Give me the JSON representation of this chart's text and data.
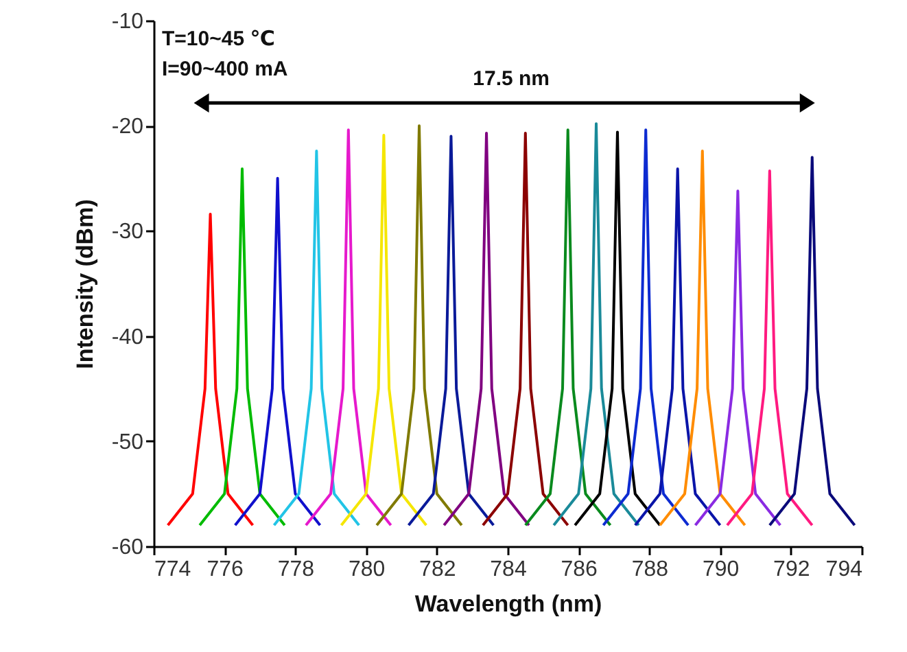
{
  "chart_data": {
    "type": "line",
    "xlabel": "Wavelength (nm)",
    "ylabel": "Intensity (dBm)",
    "xlim": [
      774,
      794
    ],
    "ylim": [
      -60,
      -10
    ],
    "xticks": [
      774,
      776,
      778,
      780,
      782,
      784,
      786,
      788,
      790,
      792,
      794
    ],
    "yticks": [
      -60,
      -50,
      -40,
      -30,
      -20,
      -10
    ],
    "grid": false,
    "marker": "none",
    "line_style": "solid",
    "annotations": [
      "T=10~45 ℃",
      "I=90~400 mA",
      "17.5 nm"
    ],
    "series": [
      {
        "color": "#ff0000",
        "x": [
          774.4,
          775.1,
          775.45,
          775.6,
          775.75,
          776.1,
          776.8
        ],
        "values": [
          -58,
          -55,
          -45,
          -28.4,
          -45,
          -55,
          -58
        ]
      },
      {
        "color": "#00bb00",
        "x": [
          775.3,
          776.0,
          776.35,
          776.5,
          776.65,
          777.0,
          777.7
        ],
        "values": [
          -58,
          -55,
          -45,
          -24.1,
          -45,
          -55,
          -58
        ]
      },
      {
        "color": "#1010cc",
        "x": [
          776.3,
          777.0,
          777.35,
          777.5,
          777.65,
          778.0,
          778.7
        ],
        "values": [
          -58,
          -55,
          -45,
          -25,
          -45,
          -55,
          -58
        ]
      },
      {
        "color": "#22c4e6",
        "x": [
          777.4,
          778.1,
          778.45,
          778.6,
          778.75,
          779.1,
          779.8
        ],
        "values": [
          -58,
          -55,
          -45,
          -22.4,
          -45,
          -55,
          -58
        ]
      },
      {
        "color": "#e619cc",
        "x": [
          778.3,
          779.0,
          779.35,
          779.5,
          779.65,
          780.0,
          780.7
        ],
        "values": [
          -58,
          -55,
          -45,
          -20.4,
          -45,
          -55,
          -58
        ]
      },
      {
        "color": "#f5e600",
        "x": [
          779.3,
          780.0,
          780.35,
          780.5,
          780.65,
          781.0,
          781.7
        ],
        "values": [
          -58,
          -55,
          -45,
          -20.9,
          -45,
          -55,
          -58
        ]
      },
      {
        "color": "#807a00",
        "x": [
          780.3,
          781.0,
          781.35,
          781.5,
          781.65,
          782.0,
          782.7
        ],
        "values": [
          -58,
          -55,
          -45,
          -20,
          -45,
          -55,
          -58
        ]
      },
      {
        "color": "#0a1a99",
        "x": [
          781.2,
          781.9,
          782.25,
          782.4,
          782.55,
          782.9,
          783.6
        ],
        "values": [
          -58,
          -55,
          -45,
          -21,
          -45,
          -55,
          -58
        ]
      },
      {
        "color": "#800080",
        "x": [
          782.2,
          782.9,
          783.25,
          783.4,
          783.55,
          783.9,
          784.6
        ],
        "values": [
          -58,
          -55,
          -45,
          -20.7,
          -45,
          -55,
          -58
        ]
      },
      {
        "color": "#8b0000",
        "x": [
          783.3,
          784.0,
          784.35,
          784.5,
          784.65,
          785.0,
          785.7
        ],
        "values": [
          -58,
          -55,
          -45,
          -20.7,
          -45,
          -55,
          -58
        ]
      },
      {
        "color": "#0a8a1e",
        "x": [
          784.5,
          785.2,
          785.55,
          785.7,
          785.85,
          786.2,
          786.9
        ],
        "values": [
          -58,
          -55,
          -45,
          -20.4,
          -45,
          -55,
          -58
        ]
      },
      {
        "color": "#1a8a99",
        "x": [
          785.3,
          786.0,
          786.35,
          786.5,
          786.65,
          787.0,
          787.7
        ],
        "values": [
          -58,
          -55,
          -45,
          -19.8,
          -45,
          -55,
          -58
        ]
      },
      {
        "color": "#000000",
        "x": [
          785.9,
          786.6,
          786.95,
          787.1,
          787.25,
          787.6,
          788.3
        ],
        "values": [
          -58,
          -55,
          -45,
          -20.6,
          -45,
          -55,
          -58
        ]
      },
      {
        "color": "#0d2bd1",
        "x": [
          786.7,
          787.4,
          787.75,
          787.9,
          788.05,
          788.4,
          789.1
        ],
        "values": [
          -58,
          -55,
          -45,
          -20.4,
          -45,
          -55,
          -58
        ]
      },
      {
        "color": "#0a14a8",
        "x": [
          787.6,
          788.3,
          788.65,
          788.8,
          788.95,
          789.3,
          790.0
        ],
        "values": [
          -58,
          -55,
          -45,
          -24.1,
          -45,
          -55,
          -58
        ]
      },
      {
        "color": "#ff8c00",
        "x": [
          788.3,
          789.0,
          789.35,
          789.5,
          789.65,
          790.0,
          790.7
        ],
        "values": [
          -58,
          -55,
          -45,
          -22.4,
          -45,
          -55,
          -58
        ]
      },
      {
        "color": "#8a2be2",
        "x": [
          789.3,
          790.0,
          790.35,
          790.5,
          790.65,
          791.0,
          791.7
        ],
        "values": [
          -58,
          -55,
          -45,
          -26.2,
          -45,
          -55,
          -58
        ]
      },
      {
        "color": "#ff1a80",
        "x": [
          790.2,
          790.9,
          791.25,
          791.4,
          791.55,
          791.9,
          792.6
        ],
        "values": [
          -58,
          -55,
          -45,
          -24.3,
          -45,
          -55,
          -58
        ]
      },
      {
        "color": "#0a0a7a",
        "x": [
          791.4,
          792.1,
          792.45,
          792.6,
          792.75,
          793.1,
          793.8
        ],
        "values": [
          -58,
          -55,
          -45,
          -23,
          -45,
          -55,
          -58
        ]
      }
    ]
  }
}
